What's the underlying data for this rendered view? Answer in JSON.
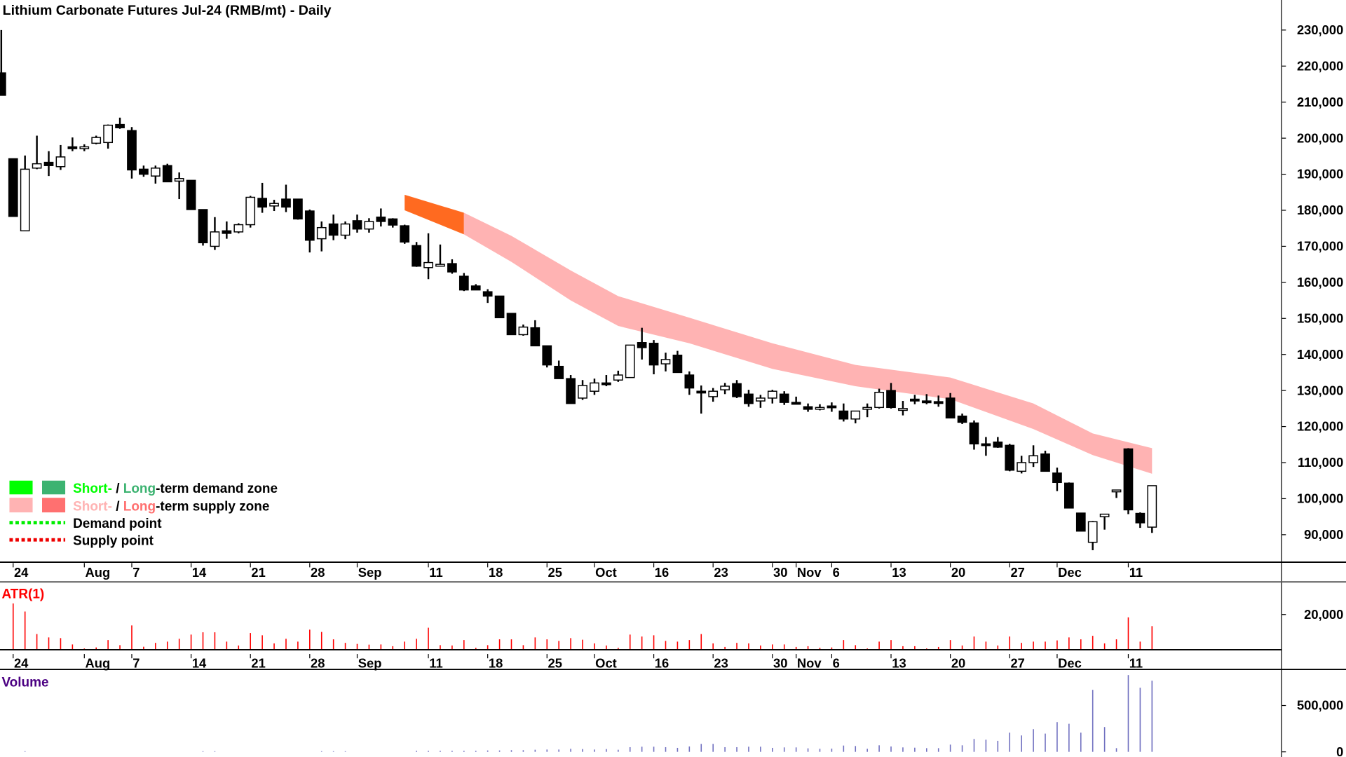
{
  "chart_data": {
    "type": "candlestick",
    "title": "Lithium Carbonate Futures Jul-24 (RMB/mt) - Daily",
    "price_axis": {
      "range": [
        90000,
        230000
      ],
      "ticks": [
        90000,
        100000,
        110000,
        120000,
        130000,
        140000,
        150000,
        160000,
        170000,
        180000,
        190000,
        200000,
        210000,
        220000,
        230000
      ],
      "tick_labels": [
        "90,000",
        "100,000",
        "110,000",
        "120,000",
        "130,000",
        "140,000",
        "150,000",
        "160,000",
        "170,000",
        "180,000",
        "190,000",
        "200,000",
        "210,000",
        "220,000",
        "230,000"
      ]
    },
    "x_labels": [
      {
        "bar": 1,
        "label": "24"
      },
      {
        "bar": 7,
        "label": "Aug"
      },
      {
        "bar": 11,
        "label": "7"
      },
      {
        "bar": 16,
        "label": "14"
      },
      {
        "bar": 21,
        "label": "21"
      },
      {
        "bar": 26,
        "label": "28"
      },
      {
        "bar": 30,
        "label": "Sep"
      },
      {
        "bar": 36,
        "label": "11"
      },
      {
        "bar": 41,
        "label": "18"
      },
      {
        "bar": 46,
        "label": "25"
      },
      {
        "bar": 50,
        "label": "Oct"
      },
      {
        "bar": 55,
        "label": "16"
      },
      {
        "bar": 60,
        "label": "23"
      },
      {
        "bar": 65,
        "label": "30"
      },
      {
        "bar": 67,
        "label": "Nov"
      },
      {
        "bar": 70,
        "label": "6"
      },
      {
        "bar": 75,
        "label": "13"
      },
      {
        "bar": 80,
        "label": "20"
      },
      {
        "bar": 85,
        "label": "27"
      },
      {
        "bar": 89,
        "label": "Dec"
      },
      {
        "bar": 95,
        "label": "11"
      }
    ],
    "candles_ohlc": [
      [
        218100,
        230000,
        211900,
        211900
      ],
      [
        194300,
        194300,
        178300,
        178300
      ],
      [
        174300,
        195200,
        174300,
        191400
      ],
      [
        191700,
        200700,
        191400,
        192900
      ],
      [
        193300,
        196400,
        189500,
        192400
      ],
      [
        192100,
        198100,
        191200,
        194800
      ],
      [
        197600,
        200200,
        196400,
        197100
      ],
      [
        197100,
        198300,
        196400,
        197600
      ],
      [
        198600,
        200700,
        198300,
        200200
      ],
      [
        198800,
        203800,
        197100,
        203600
      ],
      [
        203800,
        205700,
        202600,
        202900
      ],
      [
        202100,
        203100,
        188800,
        191200
      ],
      [
        191400,
        192400,
        189300,
        190000
      ],
      [
        189500,
        192400,
        187400,
        191700
      ],
      [
        192400,
        192900,
        187900,
        187900
      ],
      [
        188100,
        190500,
        183100,
        188800
      ],
      [
        188300,
        188300,
        180200,
        180200
      ],
      [
        180200,
        180200,
        170200,
        171000
      ],
      [
        170000,
        178100,
        169000,
        174000
      ],
      [
        174300,
        176900,
        172100,
        173600
      ],
      [
        174000,
        176400,
        173600,
        176000
      ],
      [
        176000,
        184000,
        175200,
        183600
      ],
      [
        183300,
        187600,
        179300,
        180900
      ],
      [
        181200,
        182900,
        179800,
        181900
      ],
      [
        183100,
        187100,
        179500,
        180900
      ],
      [
        183100,
        183100,
        177400,
        177600
      ],
      [
        179800,
        180200,
        168300,
        171700
      ],
      [
        172100,
        176900,
        168600,
        175200
      ],
      [
        176200,
        178800,
        171700,
        173100
      ],
      [
        173100,
        176900,
        172000,
        176200
      ],
      [
        177100,
        178800,
        173800,
        174800
      ],
      [
        174800,
        177800,
        173800,
        176900
      ],
      [
        178100,
        180500,
        175500,
        176900
      ],
      [
        177600,
        177800,
        175200,
        175900
      ],
      [
        175700,
        176000,
        170700,
        171200
      ],
      [
        170200,
        171200,
        164300,
        164500
      ],
      [
        164100,
        173600,
        160900,
        165500
      ],
      [
        164500,
        170500,
        164500,
        165000
      ],
      [
        165200,
        166400,
        162400,
        162900
      ],
      [
        161700,
        162600,
        157600,
        157900
      ],
      [
        159000,
        159500,
        157900,
        157900
      ],
      [
        157400,
        158100,
        154300,
        156200
      ],
      [
        156200,
        156200,
        150200,
        150200
      ],
      [
        151400,
        151400,
        145500,
        145500
      ],
      [
        145500,
        148300,
        145200,
        147600
      ],
      [
        147400,
        149500,
        142400,
        142400
      ],
      [
        142400,
        142400,
        136400,
        137100
      ],
      [
        136700,
        138300,
        133300,
        133300
      ],
      [
        133300,
        134300,
        126400,
        126400
      ],
      [
        127900,
        132900,
        127400,
        131400
      ],
      [
        129800,
        133300,
        128800,
        132100
      ],
      [
        132100,
        134300,
        131200,
        131800
      ],
      [
        132900,
        135500,
        132400,
        134300
      ],
      [
        133600,
        142600,
        133600,
        142600
      ],
      [
        143300,
        147400,
        138600,
        141900
      ],
      [
        143100,
        144000,
        134500,
        137100
      ],
      [
        137400,
        140500,
        135300,
        138600
      ],
      [
        139800,
        141000,
        135000,
        135000
      ],
      [
        134300,
        135300,
        128800,
        130700
      ],
      [
        129800,
        131400,
        123600,
        129500
      ],
      [
        128300,
        130700,
        126900,
        129800
      ],
      [
        130200,
        132100,
        129000,
        131200
      ],
      [
        131900,
        132900,
        127900,
        128300
      ],
      [
        129000,
        130200,
        125500,
        126400
      ],
      [
        127100,
        128800,
        125200,
        127900
      ],
      [
        127900,
        130200,
        126400,
        129800
      ],
      [
        129000,
        129800,
        126000,
        126700
      ],
      [
        126700,
        128300,
        126200,
        126200
      ],
      [
        125500,
        126400,
        124100,
        124800
      ],
      [
        124800,
        126200,
        124500,
        125300
      ],
      [
        125700,
        126700,
        124100,
        125300
      ],
      [
        124300,
        126400,
        121400,
        122100
      ],
      [
        122100,
        124300,
        120900,
        124300
      ],
      [
        124800,
        126400,
        122600,
        125300
      ],
      [
        125300,
        130500,
        125000,
        129500
      ],
      [
        130000,
        132100,
        125000,
        125300
      ],
      [
        124500,
        127100,
        123100,
        125000
      ],
      [
        127600,
        128800,
        126200,
        127100
      ],
      [
        127100,
        129000,
        126200,
        126900
      ],
      [
        126900,
        128600,
        125500,
        126700
      ],
      [
        127900,
        129300,
        122400,
        122400
      ],
      [
        122900,
        123600,
        120700,
        121200
      ],
      [
        121000,
        121700,
        113600,
        115200
      ],
      [
        115200,
        117100,
        111900,
        114800
      ],
      [
        115700,
        117100,
        114100,
        114300
      ],
      [
        114800,
        115200,
        107600,
        107900
      ],
      [
        107600,
        111900,
        107000,
        110000
      ],
      [
        110000,
        114800,
        108800,
        111900
      ],
      [
        112400,
        113300,
        107600,
        107600
      ],
      [
        107100,
        108600,
        102100,
        104500
      ],
      [
        104300,
        104500,
        97400,
        97400
      ],
      [
        96000,
        96000,
        91000,
        91000
      ],
      [
        87900,
        93800,
        85700,
        93600
      ],
      [
        95000,
        95700,
        91400,
        95700
      ],
      [
        101900,
        102400,
        100200,
        102400
      ],
      [
        113800,
        114000,
        95700,
        96900
      ],
      [
        95900,
        96200,
        91900,
        93300
      ],
      [
        92100,
        103600,
        90500,
        103600
      ]
    ],
    "zones": [
      {
        "name": "supply-zone-highlight",
        "color": "#FF6A20",
        "points": [
          [
            34,
            184300,
            180000
          ],
          [
            39,
            179300,
            173300
          ]
        ]
      },
      {
        "name": "short-term-supply-zone",
        "color": "#FFB3B3",
        "points": [
          [
            39,
            179300,
            173300
          ],
          [
            43,
            172900,
            165700
          ],
          [
            48,
            163300,
            155000
          ],
          [
            52,
            156200,
            147900
          ],
          [
            58,
            150200,
            143100
          ],
          [
            65,
            143100,
            136000
          ],
          [
            72,
            137100,
            131200
          ],
          [
            80,
            133600,
            127600
          ],
          [
            87,
            126400,
            119300
          ],
          [
            92,
            118100,
            112100
          ],
          [
            97,
            114000,
            106900
          ]
        ]
      }
    ],
    "atr": {
      "label": "ATR(1)",
      "color": "#FF0000",
      "range": [
        0,
        20000
      ],
      "ticks": [
        20000
      ],
      "tick_labels": [
        "20,000"
      ],
      "values": [
        null,
        26300,
        21700,
        8900,
        7000,
        6600,
        3000,
        700,
        1300,
        5500,
        2600,
        13800,
        1700,
        3900,
        4600,
        6200,
        8600,
        9900,
        9900,
        4600,
        2400,
        9500,
        8200,
        3600,
        6200,
        4600,
        11400,
        10100,
        5900,
        3900,
        3300,
        2900,
        3000,
        2000,
        4600,
        6200,
        12500,
        2600,
        2400,
        5500,
        1100,
        2600,
        5900,
        5900,
        2600,
        7000,
        5900,
        5000,
        6600,
        5700,
        3600,
        2400,
        1100,
        8600,
        7500,
        8200,
        5000,
        4600,
        5500,
        8900,
        3600,
        1600,
        3900,
        3600,
        2400,
        3000,
        3000,
        1600,
        2000,
        1100,
        1300,
        5500,
        2600,
        700,
        4600,
        5500,
        2000,
        2000,
        700,
        1600,
        5500,
        2400,
        7500,
        4600,
        2400,
        7500,
        3900,
        4600,
        4600,
        5300,
        7000,
        5900,
        7900,
        3600,
        5900,
        18400,
        4600,
        13400
      ]
    },
    "volume": {
      "label": "Volume",
      "color": "#7070C0",
      "range": [
        0,
        500000
      ],
      "ticks": [
        0,
        500000
      ],
      "tick_labels": [
        "0",
        "500,000"
      ],
      "values": [
        0,
        0,
        7000,
        0,
        0,
        0,
        0,
        0,
        0,
        0,
        0,
        0,
        0,
        0,
        0,
        0,
        0,
        7000,
        7000,
        0,
        0,
        0,
        0,
        0,
        0,
        0,
        0,
        7000,
        7000,
        7000,
        0,
        0,
        0,
        0,
        0,
        12600,
        12600,
        12600,
        12600,
        12600,
        12600,
        15000,
        15000,
        17700,
        17700,
        22700,
        25000,
        25000,
        32800,
        30000,
        25000,
        30000,
        22700,
        50500,
        55500,
        55500,
        50500,
        43000,
        58000,
        85800,
        85800,
        50500,
        50500,
        55500,
        55500,
        43000,
        48000,
        48000,
        38000,
        33000,
        35000,
        68000,
        63000,
        33000,
        70700,
        58000,
        48000,
        45000,
        40000,
        40000,
        78000,
        70700,
        139000,
        131000,
        119000,
        207000,
        177000,
        245000,
        197000,
        321000,
        303000,
        207000,
        669000,
        268000,
        40000,
        828000,
        692000,
        768000
      ]
    },
    "legend": {
      "placement": "bottom-left",
      "demand_zone": {
        "short": "Short-",
        "sep": " / ",
        "long": "Long",
        "rest": "-term demand zone",
        "short_color": "#00FF00",
        "long_color": "#3CB371"
      },
      "supply_zone": {
        "short": "Short-",
        "sep": " / ",
        "long": "Long",
        "rest": "-term supply zone",
        "short_color": "#FFB3B3",
        "long_color": "#FF7070"
      },
      "demand_point": {
        "label": "Demand point",
        "color": "#00EE00"
      },
      "supply_point": {
        "label": "Supply point",
        "color": "#EE0000"
      }
    }
  }
}
